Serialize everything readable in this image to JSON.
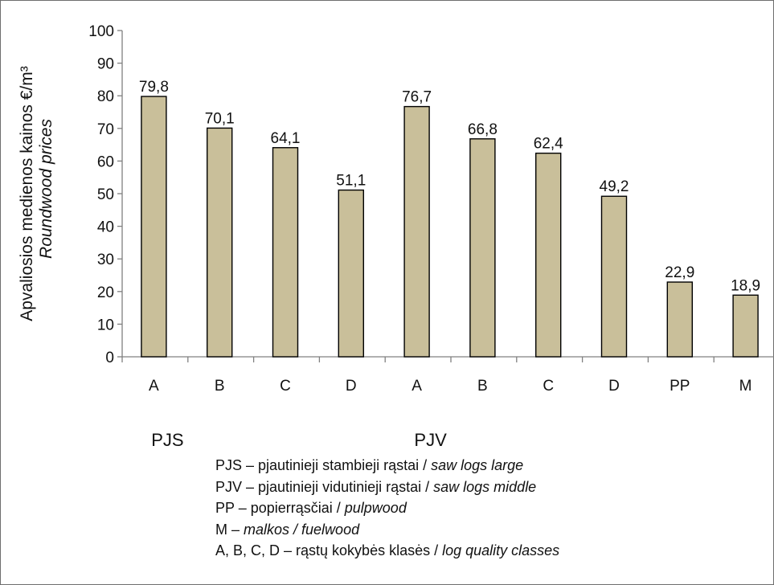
{
  "chart_data": {
    "type": "bar",
    "categories": [
      "A",
      "B",
      "C",
      "D",
      "A",
      "B",
      "C",
      "D",
      "PP",
      "M"
    ],
    "values": [
      79.8,
      70.1,
      64.1,
      51.1,
      76.7,
      66.8,
      62.4,
      49.2,
      22.9,
      18.9
    ],
    "data_labels": [
      "79,8",
      "70,1",
      "64,1",
      "51,1",
      "76,7",
      "66,8",
      "62,4",
      "49,2",
      "22,9",
      "18,9"
    ],
    "ylabel": "Apvaliosios medienos kainos €/m³",
    "ylabel_italic": "Roundwood prices",
    "ylim": [
      0,
      100
    ],
    "yticks": [
      0,
      10,
      20,
      30,
      40,
      50,
      60,
      70,
      80,
      90,
      100
    ],
    "groups": [
      {
        "label": "PJS",
        "start": 0,
        "end": 3
      },
      {
        "label": "PJV",
        "start": 4,
        "end": 7
      }
    ],
    "bar_color": "#c9bf9a",
    "grid": false,
    "legend": [
      {
        "plain": "PJS – pjautinieji stambieji rąstai  / ",
        "italic": "saw logs large"
      },
      {
        "plain": "PJV – pjautinieji vidutinieji rąstai  / ",
        "italic": "saw logs middle"
      },
      {
        "plain": "PP – popierrąsčiai / ",
        "italic": "pulpwood"
      },
      {
        "plain": "M – ",
        "italic": "malkos / fuelwood"
      },
      {
        "plain": "A, B, C, D – rąstų kokybės klasės / ",
        "italic": "log quality classes"
      }
    ]
  }
}
